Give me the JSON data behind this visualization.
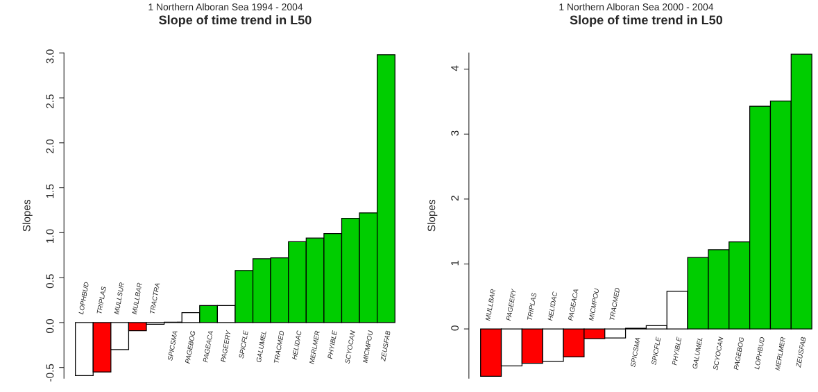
{
  "chart_data": [
    {
      "type": "bar",
      "subtitle": "1 Northern Alboran Sea 1994 - 2004",
      "title": "Slope of time trend in L50",
      "ylabel": "Slopes",
      "categories": [
        "LOPHBUD",
        "TRIPLAS",
        "MULLSUR",
        "MULLBAR",
        "TRACTRA",
        "SPICSMA",
        "PAGEBOG",
        "PAGEACA",
        "PAGEERY",
        "SPICFLE",
        "GALUMEL",
        "TRACMED",
        "HELIDAC",
        "MERLMER",
        "PHYIBLE",
        "SCYOCAN",
        "MICMPOU",
        "ZEUSFAB"
      ],
      "values": [
        -0.59,
        -0.55,
        -0.3,
        -0.09,
        -0.02,
        0.005,
        0.11,
        0.19,
        0.19,
        0.58,
        0.71,
        0.72,
        0.9,
        0.94,
        0.99,
        1.16,
        1.22,
        2.98
      ],
      "colors": [
        "#ffffff",
        "#ff0000",
        "#ffffff",
        "#ff0000",
        "#ffffff",
        "#ffffff",
        "#ffffff",
        "#00cd00",
        "#ffffff",
        "#00cd00",
        "#00cd00",
        "#00cd00",
        "#00cd00",
        "#00cd00",
        "#00cd00",
        "#00cd00",
        "#00cd00",
        "#00cd00"
      ],
      "ylim": [
        -0.62,
        3.0
      ],
      "yticks": [
        {
          "value": -0.5,
          "label": "-0.5"
        },
        {
          "value": 0,
          "label": "0.0"
        },
        0.5,
        {
          "value": 1,
          "label": "1.0"
        },
        1.5,
        {
          "value": 2,
          "label": "2.0"
        },
        2.5,
        {
          "value": 3,
          "label": "3.0"
        }
      ],
      "grid": false,
      "legend": false
    },
    {
      "type": "bar",
      "subtitle": "1 Northern Alboran Sea 2000 - 2004",
      "title": "Slope of time trend in L50",
      "ylabel": "Slopes",
      "categories": [
        "MULLBAR",
        "PAGEERY",
        "TRIPLAS",
        "HELIDAC",
        "PAGEACA",
        "MICMPOU",
        "TRACMED",
        "SPICSMA",
        "SPICFLE",
        "PHYIBLE",
        "GALUMEL",
        "SCYOCAN",
        "PAGEBOG",
        "LOPHBUD",
        "MERLMER",
        "ZEUSFAB"
      ],
      "values": [
        -0.73,
        -0.57,
        -0.53,
        -0.5,
        -0.43,
        -0.15,
        -0.14,
        0.01,
        0.05,
        0.58,
        1.1,
        1.22,
        1.34,
        3.43,
        3.51,
        4.23
      ],
      "colors": [
        "#ff0000",
        "#ffffff",
        "#ff0000",
        "#ffffff",
        "#ff0000",
        "#ff0000",
        "#ffffff",
        "#ffffff",
        "#ffffff",
        "#ffffff",
        "#00cd00",
        "#00cd00",
        "#00cd00",
        "#00cd00",
        "#00cd00",
        "#00cd00"
      ],
      "ylim": [
        -0.76,
        4.25
      ],
      "yticks": [
        0,
        1,
        2,
        3,
        4
      ],
      "grid": false,
      "legend": false
    }
  ]
}
